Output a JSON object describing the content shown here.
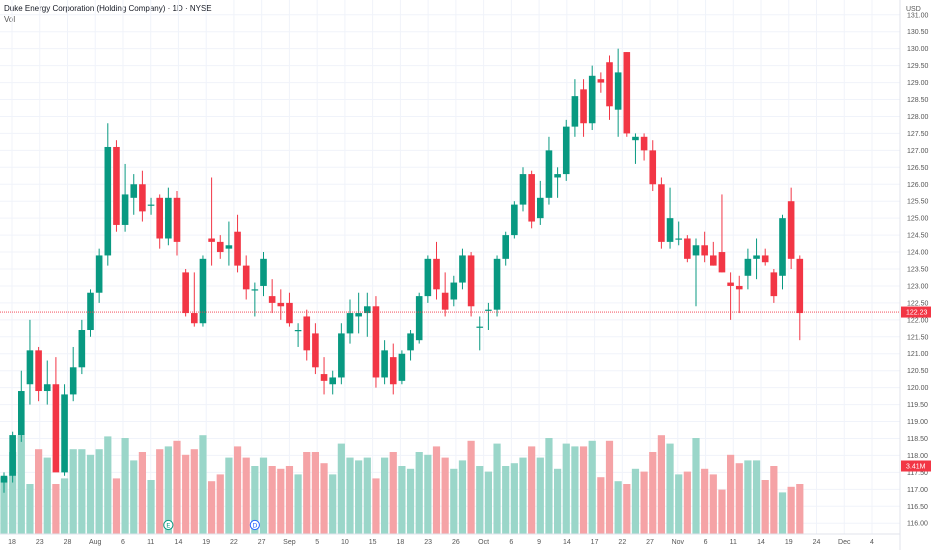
{
  "header": {
    "title": "Duke Energy Corporation (Holding Company) · 1D · NYSE",
    "indicator": "Vol"
  },
  "colors": {
    "up": "#089981",
    "down": "#f23645",
    "vol_up": "#9ad6c9",
    "vol_down": "#f5a3a6",
    "price_tag": "#f23645",
    "grid": "#f0f3fa"
  },
  "price_axis": {
    "currency": "USD",
    "ticks": [
      "131.00",
      "130.50",
      "130.00",
      "129.50",
      "129.00",
      "128.50",
      "128.00",
      "127.50",
      "127.00",
      "126.50",
      "126.00",
      "125.50",
      "125.00",
      "124.50",
      "124.00",
      "123.50",
      "123.00",
      "122.50",
      "122.00",
      "121.50",
      "121.00",
      "120.50",
      "120.00",
      "119.50",
      "119.00",
      "118.50",
      "118.00",
      "117.50",
      "117.00",
      "116.50",
      "116.00"
    ],
    "last_price": "122.23",
    "volume_label": "3.41M"
  },
  "time_axis": {
    "ticks": [
      "18",
      "23",
      "28",
      "Aug",
      "6",
      "11",
      "14",
      "19",
      "22",
      "27",
      "Sep",
      "5",
      "10",
      "15",
      "18",
      "23",
      "26",
      "Oct",
      "6",
      "9",
      "14",
      "17",
      "22",
      "27",
      "Nov",
      "6",
      "11",
      "14",
      "19",
      "24",
      "Dec",
      "4"
    ]
  },
  "event_markers": [
    {
      "label": "E",
      "color": "#089981",
      "date_index": 19
    },
    {
      "label": "D",
      "color": "#2962ff",
      "date_index": 29
    },
    {
      "label": "E",
      "color": "#089981",
      "date_index": 136
    },
    {
      "label": "D",
      "color": "#2962ff",
      "date_index": 143
    },
    {
      "label": "⚡",
      "color": "#9c27b0",
      "date_index": 147
    }
  ],
  "chart_data": {
    "type": "candlestick",
    "title": "Duke Energy Corporation (Holding Company) · 1D · NYSE",
    "y_range": [
      115.8,
      131.2
    ],
    "y_scale": "linear",
    "grid": true,
    "series": [
      {
        "name": "DUK",
        "values": [
          {
            "o": 117.2,
            "h": 117.5,
            "l": 116.9,
            "c": 117.4
          },
          {
            "o": 117.4,
            "h": 118.7,
            "l": 117.2,
            "c": 118.6
          },
          {
            "o": 118.6,
            "h": 120.5,
            "l": 118.4,
            "c": 119.9
          },
          {
            "o": 120.1,
            "h": 122.0,
            "l": 119.5,
            "c": 121.1
          },
          {
            "o": 121.1,
            "h": 121.2,
            "l": 119.6,
            "c": 119.9
          },
          {
            "o": 119.9,
            "h": 120.8,
            "l": 119.5,
            "c": 120.1
          },
          {
            "o": 120.1,
            "h": 120.9,
            "l": 118.4,
            "c": 117.5
          },
          {
            "o": 117.5,
            "h": 120.1,
            "l": 117.4,
            "c": 119.8
          },
          {
            "o": 119.8,
            "h": 121.2,
            "l": 119.6,
            "c": 120.6
          },
          {
            "o": 120.6,
            "h": 122.0,
            "l": 120.4,
            "c": 121.7
          },
          {
            "o": 121.7,
            "h": 122.9,
            "l": 121.5,
            "c": 122.8
          },
          {
            "o": 122.8,
            "h": 124.1,
            "l": 122.5,
            "c": 123.9
          },
          {
            "o": 123.9,
            "h": 127.8,
            "l": 123.6,
            "c": 127.1
          },
          {
            "o": 127.1,
            "h": 127.3,
            "l": 124.6,
            "c": 124.8
          },
          {
            "o": 124.8,
            "h": 126.6,
            "l": 124.6,
            "c": 125.7
          },
          {
            "o": 125.6,
            "h": 126.3,
            "l": 125.1,
            "c": 126.0
          },
          {
            "o": 126.0,
            "h": 126.4,
            "l": 124.9,
            "c": 125.2
          },
          {
            "o": 125.4,
            "h": 125.6,
            "l": 125.1,
            "c": 125.4
          },
          {
            "o": 125.6,
            "h": 125.7,
            "l": 124.1,
            "c": 124.4
          },
          {
            "o": 124.4,
            "h": 125.9,
            "l": 124.2,
            "c": 125.6
          },
          {
            "o": 125.6,
            "h": 125.8,
            "l": 123.9,
            "c": 124.3
          },
          {
            "o": 123.4,
            "h": 123.5,
            "l": 122.1,
            "c": 122.2
          },
          {
            "o": 122.2,
            "h": 123.4,
            "l": 121.8,
            "c": 121.9
          },
          {
            "o": 121.9,
            "h": 123.9,
            "l": 121.8,
            "c": 123.8
          },
          {
            "o": 124.4,
            "h": 126.2,
            "l": 123.6,
            "c": 124.3
          },
          {
            "o": 124.3,
            "h": 124.5,
            "l": 123.8,
            "c": 124.0
          },
          {
            "o": 124.1,
            "h": 124.9,
            "l": 123.6,
            "c": 124.2
          },
          {
            "o": 124.6,
            "h": 125.1,
            "l": 123.4,
            "c": 123.6
          },
          {
            "o": 123.6,
            "h": 123.9,
            "l": 122.6,
            "c": 122.9
          },
          {
            "o": 122.9,
            "h": 123.1,
            "l": 122.1,
            "c": 122.9
          },
          {
            "o": 123.0,
            "h": 124.0,
            "l": 122.7,
            "c": 123.8
          },
          {
            "o": 122.7,
            "h": 123.2,
            "l": 122.2,
            "c": 122.5
          },
          {
            "o": 122.5,
            "h": 122.9,
            "l": 122.0,
            "c": 122.4
          },
          {
            "o": 122.5,
            "h": 122.8,
            "l": 121.8,
            "c": 121.9
          },
          {
            "o": 121.7,
            "h": 121.9,
            "l": 121.2,
            "c": 121.7
          },
          {
            "o": 122.1,
            "h": 122.3,
            "l": 120.8,
            "c": 121.1
          },
          {
            "o": 121.6,
            "h": 121.9,
            "l": 120.4,
            "c": 120.6
          },
          {
            "o": 120.4,
            "h": 120.9,
            "l": 119.8,
            "c": 120.2
          },
          {
            "o": 120.1,
            "h": 120.5,
            "l": 119.8,
            "c": 120.3
          },
          {
            "o": 120.3,
            "h": 121.9,
            "l": 120.1,
            "c": 121.6
          },
          {
            "o": 121.6,
            "h": 122.6,
            "l": 121.3,
            "c": 122.2
          },
          {
            "o": 122.1,
            "h": 122.8,
            "l": 121.6,
            "c": 122.2
          },
          {
            "o": 122.2,
            "h": 122.8,
            "l": 121.5,
            "c": 122.4
          },
          {
            "o": 122.4,
            "h": 122.7,
            "l": 120.0,
            "c": 120.3
          },
          {
            "o": 120.3,
            "h": 121.4,
            "l": 120.1,
            "c": 121.1
          },
          {
            "o": 120.9,
            "h": 121.3,
            "l": 119.8,
            "c": 120.1
          },
          {
            "o": 120.2,
            "h": 121.1,
            "l": 120.1,
            "c": 121.0
          },
          {
            "o": 121.1,
            "h": 121.7,
            "l": 120.8,
            "c": 121.6
          },
          {
            "o": 121.4,
            "h": 122.8,
            "l": 121.3,
            "c": 122.7
          },
          {
            "o": 122.7,
            "h": 123.9,
            "l": 122.5,
            "c": 123.8
          },
          {
            "o": 123.8,
            "h": 124.3,
            "l": 122.6,
            "c": 122.9
          },
          {
            "o": 122.8,
            "h": 123.4,
            "l": 122.1,
            "c": 122.3
          },
          {
            "o": 122.6,
            "h": 123.3,
            "l": 122.4,
            "c": 123.1
          },
          {
            "o": 123.1,
            "h": 124.1,
            "l": 122.9,
            "c": 123.9
          },
          {
            "o": 123.9,
            "h": 124.0,
            "l": 122.1,
            "c": 122.4
          },
          {
            "o": 121.8,
            "h": 122.1,
            "l": 121.1,
            "c": 121.8
          },
          {
            "o": 122.3,
            "h": 122.5,
            "l": 121.7,
            "c": 122.3
          },
          {
            "o": 122.3,
            "h": 123.9,
            "l": 122.1,
            "c": 123.8
          },
          {
            "o": 123.8,
            "h": 124.6,
            "l": 123.6,
            "c": 124.5
          },
          {
            "o": 124.5,
            "h": 125.5,
            "l": 124.4,
            "c": 125.4
          },
          {
            "o": 125.4,
            "h": 126.5,
            "l": 125.2,
            "c": 126.3
          },
          {
            "o": 126.3,
            "h": 126.4,
            "l": 124.7,
            "c": 124.9
          },
          {
            "o": 125.0,
            "h": 126.1,
            "l": 124.8,
            "c": 125.6
          },
          {
            "o": 125.6,
            "h": 127.4,
            "l": 125.4,
            "c": 127.0
          },
          {
            "o": 126.2,
            "h": 126.5,
            "l": 125.6,
            "c": 126.3
          },
          {
            "o": 126.3,
            "h": 127.9,
            "l": 126.1,
            "c": 127.7
          },
          {
            "o": 127.7,
            "h": 129.1,
            "l": 127.4,
            "c": 128.6
          },
          {
            "o": 128.8,
            "h": 129.1,
            "l": 127.4,
            "c": 127.8
          },
          {
            "o": 127.8,
            "h": 129.5,
            "l": 127.6,
            "c": 129.2
          },
          {
            "o": 129.1,
            "h": 129.3,
            "l": 128.7,
            "c": 129.0
          },
          {
            "o": 129.6,
            "h": 129.8,
            "l": 127.9,
            "c": 128.3
          },
          {
            "o": 128.2,
            "h": 130.0,
            "l": 127.4,
            "c": 129.3
          },
          {
            "o": 129.9,
            "h": 129.9,
            "l": 127.4,
            "c": 127.5
          },
          {
            "o": 127.3,
            "h": 127.5,
            "l": 126.6,
            "c": 127.4
          },
          {
            "o": 127.4,
            "h": 127.5,
            "l": 126.7,
            "c": 127.0
          },
          {
            "o": 127.0,
            "h": 127.3,
            "l": 125.8,
            "c": 126.0
          },
          {
            "o": 126.0,
            "h": 126.2,
            "l": 124.1,
            "c": 124.3
          },
          {
            "o": 124.3,
            "h": 125.9,
            "l": 124.1,
            "c": 125.0
          },
          {
            "o": 124.4,
            "h": 124.9,
            "l": 124.2,
            "c": 124.4
          },
          {
            "o": 124.4,
            "h": 124.5,
            "l": 123.7,
            "c": 123.8
          },
          {
            "o": 123.9,
            "h": 124.4,
            "l": 122.4,
            "c": 124.2
          },
          {
            "o": 124.2,
            "h": 124.6,
            "l": 123.7,
            "c": 123.9
          },
          {
            "o": 123.9,
            "h": 124.3,
            "l": 123.6,
            "c": 123.6
          },
          {
            "o": 124.0,
            "h": 125.7,
            "l": 123.4,
            "c": 123.4
          },
          {
            "o": 123.1,
            "h": 123.4,
            "l": 122.0,
            "c": 123.0
          },
          {
            "o": 123.0,
            "h": 123.3,
            "l": 122.2,
            "c": 122.9
          },
          {
            "o": 123.3,
            "h": 124.1,
            "l": 122.9,
            "c": 123.8
          },
          {
            "o": 123.8,
            "h": 124.4,
            "l": 123.2,
            "c": 123.9
          },
          {
            "o": 123.9,
            "h": 124.1,
            "l": 123.6,
            "c": 123.7
          },
          {
            "o": 123.4,
            "h": 123.5,
            "l": 122.5,
            "c": 122.7
          },
          {
            "o": 123.3,
            "h": 125.1,
            "l": 122.9,
            "c": 125.0
          },
          {
            "o": 125.5,
            "h": 125.9,
            "l": 123.5,
            "c": 123.8
          },
          {
            "o": 123.8,
            "h": 123.9,
            "l": 121.4,
            "c": 122.2
          }
        ]
      }
    ],
    "volume_label": "Vol",
    "last_price": 122.23
  }
}
